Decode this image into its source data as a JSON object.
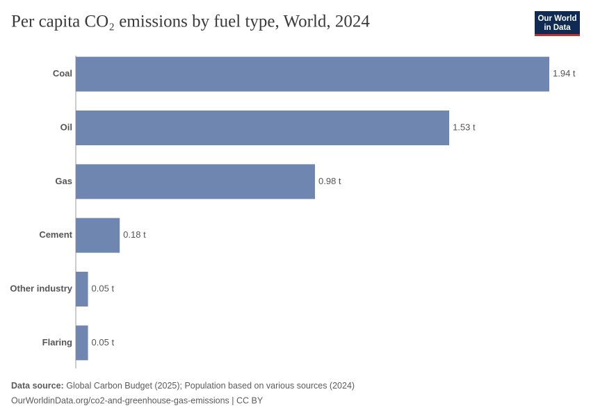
{
  "chart_data": {
    "type": "bar",
    "orientation": "horizontal",
    "title": "Per capita CO₂ emissions by fuel type, World, 2024",
    "categories": [
      "Coal",
      "Oil",
      "Gas",
      "Cement",
      "Other industry",
      "Flaring"
    ],
    "values": [
      1.94,
      1.53,
      0.98,
      0.18,
      0.05,
      0.05
    ],
    "value_labels": [
      "1.94 t",
      "1.53 t",
      "0.98 t",
      "0.18 t",
      "0.05 t",
      "0.05 t"
    ],
    "color": "#6f87b0",
    "source_label": "Data source:",
    "source": "Global Carbon Budget (2025); Population based on various sources (2024)",
    "url_line": "OurWorldinData.org/co2-and-greenhouse-gas-emissions | CC BY",
    "logo": [
      "Our World",
      "in Data"
    ]
  }
}
